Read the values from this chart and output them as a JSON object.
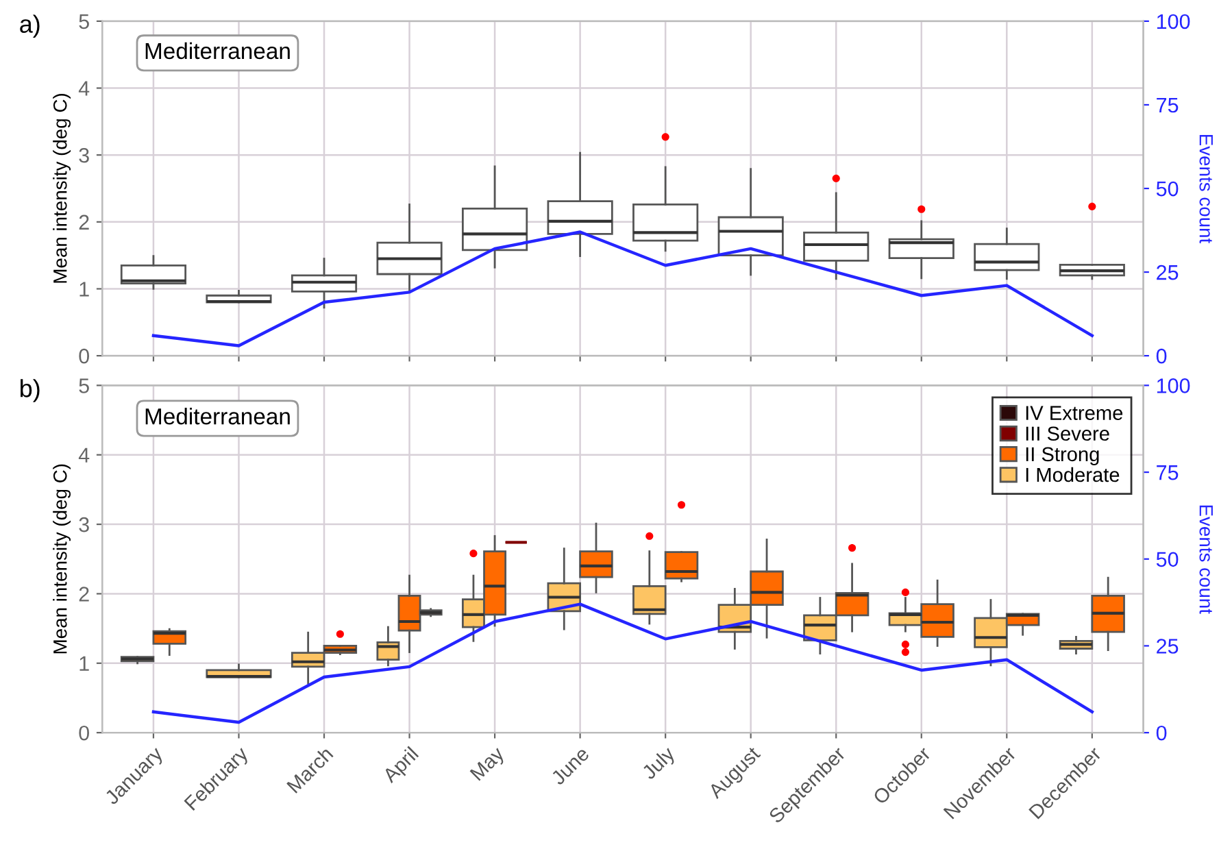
{
  "chart_data": [
    {
      "type": "box",
      "title": "a)",
      "annotations": [
        "Mediterranean"
      ],
      "ylabel": "Mean intensity (deg C)",
      "y2label": "Events count",
      "categories": [
        null,
        null,
        null,
        null,
        null,
        null,
        null,
        null,
        null,
        null,
        null,
        null
      ],
      "ylim": [
        0,
        5
      ],
      "yticks": [
        0,
        1,
        2,
        3,
        4,
        5
      ],
      "y2lim": [
        0,
        100
      ],
      "y2ticks": [
        0,
        25,
        50,
        75,
        100
      ],
      "grid": true,
      "tick_labels": "y",
      "series": [
        {
          "type": "box",
          "color": "#ffffff",
          "boxes": [
            {
              "low": 1.0,
              "q1": 1.08,
              "median": 1.12,
              "q3": 1.35,
              "high": 1.49
            },
            {
              "low": 0.8,
              "q1": 0.8,
              "median": 0.81,
              "q3": 0.9,
              "high": 0.97
            },
            {
              "low": 0.72,
              "q1": 0.96,
              "median": 1.1,
              "q3": 1.2,
              "high": 1.45
            },
            {
              "low": 0.97,
              "q1": 1.22,
              "median": 1.45,
              "q3": 1.69,
              "high": 2.26
            },
            {
              "low": 1.32,
              "q1": 1.58,
              "median": 1.82,
              "q3": 2.2,
              "high": 2.83
            },
            {
              "low": 1.49,
              "q1": 1.82,
              "median": 2.01,
              "q3": 2.31,
              "high": 3.03
            },
            {
              "low": 1.57,
              "q1": 1.72,
              "median": 1.84,
              "q3": 2.26,
              "high": 2.82,
              "outliers": [
                3.27
              ]
            },
            {
              "low": 1.21,
              "q1": 1.5,
              "median": 1.86,
              "q3": 2.07,
              "high": 2.79
            },
            {
              "low": 1.15,
              "q1": 1.42,
              "median": 1.66,
              "q3": 1.84,
              "high": 2.43,
              "outliers": [
                2.65
              ]
            },
            {
              "low": 1.16,
              "q1": 1.46,
              "median": 1.69,
              "q3": 1.74,
              "high": 2.01,
              "outliers": [
                2.19
              ]
            },
            {
              "low": 1.15,
              "q1": 1.28,
              "median": 1.4,
              "q3": 1.67,
              "high": 1.9
            },
            {
              "low": 1.15,
              "q1": 1.2,
              "median": 1.27,
              "q3": 1.36,
              "high": 1.36,
              "outliers": [
                2.23
              ]
            }
          ]
        },
        {
          "type": "line",
          "axis": "y2",
          "color": "#2525ff",
          "values": [
            6,
            3,
            16,
            19,
            32,
            37,
            27,
            32,
            25,
            18,
            21,
            6
          ]
        }
      ]
    },
    {
      "type": "box",
      "title": "b)",
      "annotations": [
        "Mediterranean"
      ],
      "ylabel": "Mean intensity (deg C)",
      "y2label": "Events count",
      "categories": [
        "January",
        "February",
        "March",
        "April",
        "May",
        "June",
        "July",
        "August",
        "September",
        "October",
        "November",
        "December"
      ],
      "ylim": [
        0,
        5
      ],
      "yticks": [
        0,
        1,
        2,
        3,
        4,
        5
      ],
      "y2lim": [
        0,
        100
      ],
      "y2ticks": [
        0,
        25,
        50,
        75,
        100
      ],
      "grid": true,
      "legend": "top right",
      "series": [
        {
          "type": "box",
          "name": "IV Extreme",
          "color": "#2b0808",
          "boxes": [
            null,
            null,
            null,
            null,
            null,
            null,
            null,
            null,
            null,
            null,
            null,
            null
          ]
        },
        {
          "type": "box",
          "name": "III Severe",
          "color": "#800000",
          "boxes": [
            null,
            null,
            null,
            {
              "low": 1.68,
              "q1": 1.7,
              "median": 1.73,
              "q3": 1.76,
              "high": 1.78
            },
            {
              "low": 2.74,
              "q1": 2.74,
              "median": 2.74,
              "q3": 2.74,
              "high": 2.74
            },
            null,
            null,
            null,
            null,
            null,
            null,
            null
          ]
        },
        {
          "type": "box",
          "name": "II Strong",
          "color": "#ff6a00",
          "boxes": [
            {
              "low": 1.12,
              "q1": 1.28,
              "median": 1.43,
              "q3": 1.46,
              "high": 1.49
            },
            null,
            {
              "low": 1.13,
              "q1": 1.15,
              "median": 1.19,
              "q3": 1.25,
              "high": 1.25,
              "outliers": [
                1.42
              ]
            },
            {
              "low": 1.16,
              "q1": 1.47,
              "median": 1.6,
              "q3": 1.97,
              "high": 2.26
            },
            {
              "low": 1.54,
              "q1": 1.7,
              "median": 2.11,
              "q3": 2.61,
              "high": 2.83
            },
            {
              "low": 2.02,
              "q1": 2.24,
              "median": 2.4,
              "q3": 2.61,
              "high": 3.01
            },
            {
              "low": 2.18,
              "q1": 2.22,
              "median": 2.32,
              "q3": 2.6,
              "high": 2.6,
              "outliers": [
                3.28
              ]
            },
            {
              "low": 1.37,
              "q1": 1.84,
              "median": 2.02,
              "q3": 2.32,
              "high": 2.78
            },
            {
              "low": 1.46,
              "q1": 1.69,
              "median": 1.98,
              "q3": 2.01,
              "high": 2.43,
              "outliers": [
                2.66
              ]
            },
            {
              "low": 1.25,
              "q1": 1.38,
              "median": 1.59,
              "q3": 1.85,
              "high": 2.19
            },
            {
              "low": 1.41,
              "q1": 1.55,
              "median": 1.69,
              "q3": 1.71,
              "high": 1.71
            },
            {
              "low": 1.19,
              "q1": 1.45,
              "median": 1.72,
              "q3": 1.97,
              "high": 2.23
            }
          ]
        },
        {
          "type": "box",
          "name": "I Moderate",
          "color": "#fdc463",
          "boxes": [
            {
              "low": 1.0,
              "q1": 1.03,
              "median": 1.06,
              "q3": 1.09,
              "high": 1.09
            },
            {
              "low": 0.8,
              "q1": 0.8,
              "median": 0.81,
              "q3": 0.9,
              "high": 0.98
            },
            {
              "low": 0.71,
              "q1": 0.95,
              "median": 1.02,
              "q3": 1.15,
              "high": 1.44
            },
            {
              "low": 0.97,
              "q1": 1.05,
              "median": 1.24,
              "q3": 1.3,
              "high": 1.52
            },
            {
              "low": 1.32,
              "q1": 1.52,
              "median": 1.7,
              "q3": 1.92,
              "high": 2.26,
              "outliers": [
                2.58
              ]
            },
            {
              "low": 1.49,
              "q1": 1.75,
              "median": 1.95,
              "q3": 2.15,
              "high": 2.65
            },
            {
              "low": 1.57,
              "q1": 1.71,
              "median": 1.77,
              "q3": 2.11,
              "high": 2.61,
              "outliers": [
                2.83
              ]
            },
            {
              "low": 1.21,
              "q1": 1.45,
              "median": 1.52,
              "q3": 1.84,
              "high": 2.07
            },
            {
              "low": 1.14,
              "q1": 1.33,
              "median": 1.55,
              "q3": 1.69,
              "high": 1.94
            },
            {
              "low": 1.46,
              "q1": 1.55,
              "median": 1.7,
              "q3": 1.72,
              "high": 1.94,
              "outliers": [
                2.02,
                1.27,
                1.16
              ]
            },
            {
              "low": 0.97,
              "q1": 1.23,
              "median": 1.37,
              "q3": 1.65,
              "high": 1.91
            },
            {
              "low": 1.14,
              "q1": 1.21,
              "median": 1.27,
              "q3": 1.32,
              "high": 1.38
            }
          ]
        },
        {
          "type": "line",
          "axis": "y2",
          "color": "#2525ff",
          "values": [
            6,
            3,
            16,
            19,
            32,
            37,
            27,
            32,
            25,
            18,
            21,
            6
          ]
        }
      ]
    }
  ]
}
